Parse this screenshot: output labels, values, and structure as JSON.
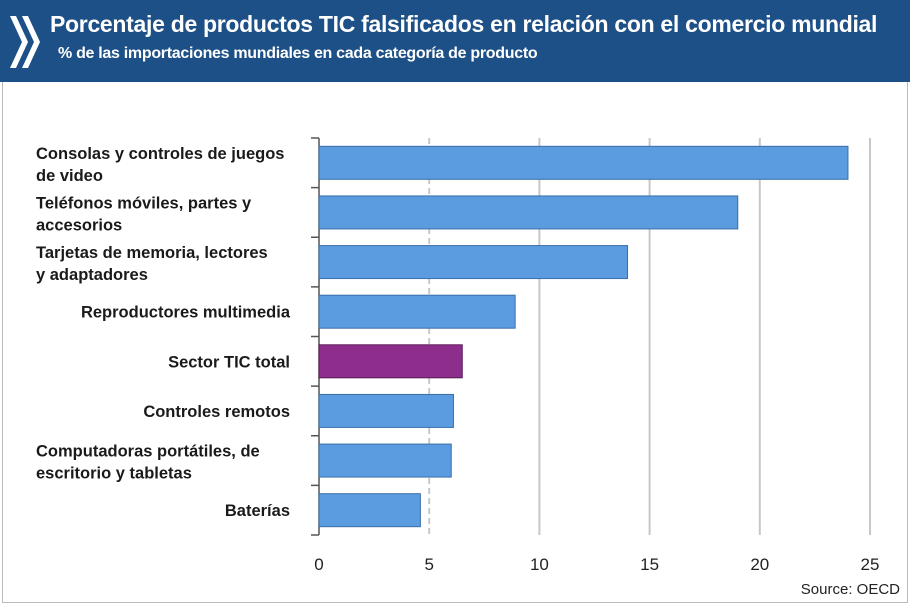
{
  "header": {
    "title": "Porcentaje de productos TIC falsificados en relación con el comercio mundial",
    "subtitle": "% de las importaciones  mundiales en cada categoría de producto"
  },
  "source": "Source: OECD",
  "colors": {
    "header": "#1d5087",
    "bar": "#5b9be0",
    "highlight": "#8e2e8c"
  },
  "chart_data": {
    "type": "bar",
    "orientation": "horizontal",
    "title": "Porcentaje de productos TIC falsificados en relación con el comercio mundial",
    "subtitle": "% de las importaciones  mundiales en cada categoría de producto",
    "categories": [
      [
        "Consolas y controles de juegos",
        "de video"
      ],
      [
        "Teléfonos móviles, partes y",
        "accesorios"
      ],
      [
        "Tarjetas de memoria, lectores",
        "y adaptadores"
      ],
      [
        "Reproductores multimedia"
      ],
      [
        "Sector TIC total"
      ],
      [
        "Controles remotos"
      ],
      [
        "Computadoras  portátiles, de",
        "escritorio y tabletas"
      ],
      [
        "Baterías"
      ]
    ],
    "values": [
      24,
      19,
      14,
      8.9,
      6.5,
      6.1,
      6.0,
      4.6
    ],
    "highlight_index": 4,
    "xlim": [
      0,
      25
    ],
    "xticks": [
      "0",
      "5",
      "10",
      "15",
      "20",
      "25"
    ],
    "grid": true
  }
}
